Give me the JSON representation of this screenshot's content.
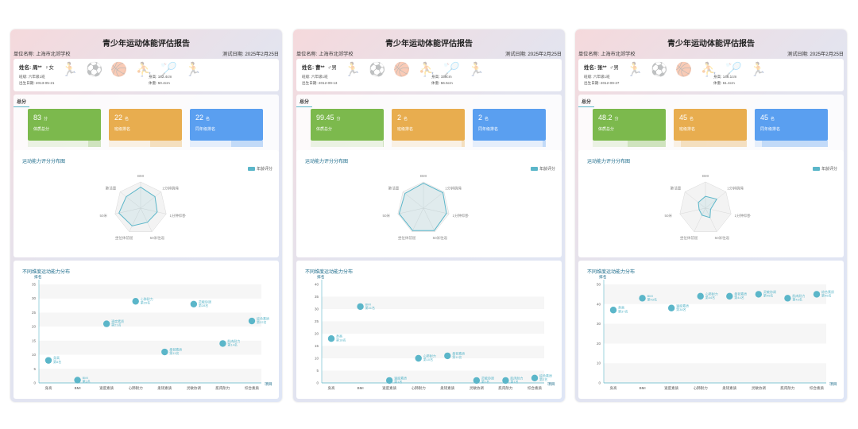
{
  "common": {
    "title": "青少年运动体能评估报告",
    "school_label": "单位名称: 上海市北郊学校",
    "score_tab": "总分",
    "radar_title": "运动能力评分分布图",
    "radar_legend": "年龄评分",
    "dist_title": "不同维度运动能力分布",
    "dist_ylabel": "排名",
    "dist_xlabel": "项目",
    "box_labels": [
      "体质总分",
      "班级排名",
      "同年级排名"
    ],
    "box_units": [
      "分",
      "名",
      "名"
    ],
    "colors": {
      "green": "#7cb94d",
      "orange": "#e8ad4f",
      "blue": "#5a9ff0",
      "accent": "#5bb6c9"
    }
  },
  "reports": [
    {
      "date_label": "测试日期: 2025年2月25日",
      "name": "姓名: 周**",
      "gender": "♀女",
      "class": "班级: 六年级1班",
      "birth": "出生日期: 2013-05-21",
      "height": "身高: 162.4cm",
      "weight": "体重: 50.4cm",
      "total_score": "83",
      "class_rank": "22",
      "grade_rank": "22"
    },
    {
      "date_label": "测试日期: 2025年2月25日",
      "name": "姓名: 曹**",
      "gender": "♂男",
      "class": "班级: 六年级1班",
      "birth": "出生日期: 2012-09-13",
      "height": "身高: 158cm",
      "weight": "体重: 56.5cm",
      "total_score": "99.45",
      "class_rank": "2",
      "grade_rank": "2"
    },
    {
      "date_label": "测试日期: 2025年2月25日",
      "name": "姓名: 张**",
      "gender": "♂男",
      "class": "班级: 六年级1班",
      "birth": "出生日期: 2012-09-27",
      "height": "身高: 148.1cm",
      "weight": "体重: 61.4cm",
      "total_score": "48.2",
      "class_rank": "45",
      "grade_rank": "45"
    }
  ],
  "chart_data": [
    {
      "type": "radar",
      "title": "运动能力评分分布图",
      "axes": [
        "BMI",
        "1分钟跳绳",
        "1分钟仰卧",
        "50米往返",
        "坐位体前屈",
        "50米",
        "肺活量"
      ],
      "series": [
        {
          "name": "年龄评分",
          "values": [
            [
              80,
              70,
              65,
              60,
              75,
              85,
              70
            ],
            [
              95,
              95,
              90,
              95,
              95,
              95,
              90
            ],
            [
              45,
              55,
              20,
              40,
              30,
              25,
              35
            ]
          ]
        }
      ]
    },
    {
      "type": "scatter",
      "title": "不同维度运动能力分布",
      "ylabel": "排名",
      "xlabel": "项目",
      "categories": [
        "身高",
        "BMI",
        "速度素质",
        "心肺耐力",
        "柔韧素质",
        "灵敏协调",
        "肌肉耐力",
        "综合素质"
      ],
      "ylims": [
        [
          0,
          35
        ],
        [
          0,
          40
        ],
        [
          0,
          50
        ]
      ],
      "series": [
        {
          "name": "周**",
          "values": [
            8,
            1,
            21,
            29,
            11,
            28,
            14,
            22
          ],
          "labels": [
            "身高\n第8名",
            "BMI\n第1名",
            "速度素质\n第21名",
            "心肺耐力\n第29名",
            "柔韧素质\n第11名",
            "灵敏协调\n第28名",
            "肌肉耐力\n第14名",
            "综合素质\n第22名"
          ]
        },
        {
          "name": "曹**",
          "values": [
            18,
            31,
            1,
            10,
            11,
            1,
            1,
            2
          ],
          "labels": [
            "身高\n第18名",
            "BMI\n第31名",
            "速度素质\n第1名",
            "心肺耐力\n第10名",
            "柔韧素质\n第11名",
            "灵敏协调\n第1名",
            "肌肉耐力\n第1名",
            "综合素质\n第2名"
          ]
        },
        {
          "name": "张**",
          "values": [
            37,
            43,
            38,
            44,
            44,
            45,
            43,
            45
          ],
          "labels": [
            "身高\n第37名",
            "BMI\n第43名",
            "速度素质\n第38名",
            "心肺耐力\n第44名",
            "柔韧素质\n第44名",
            "灵敏协调\n第45名",
            "肌肉耐力\n第43名",
            "综合素质\n第45名"
          ]
        }
      ]
    }
  ]
}
